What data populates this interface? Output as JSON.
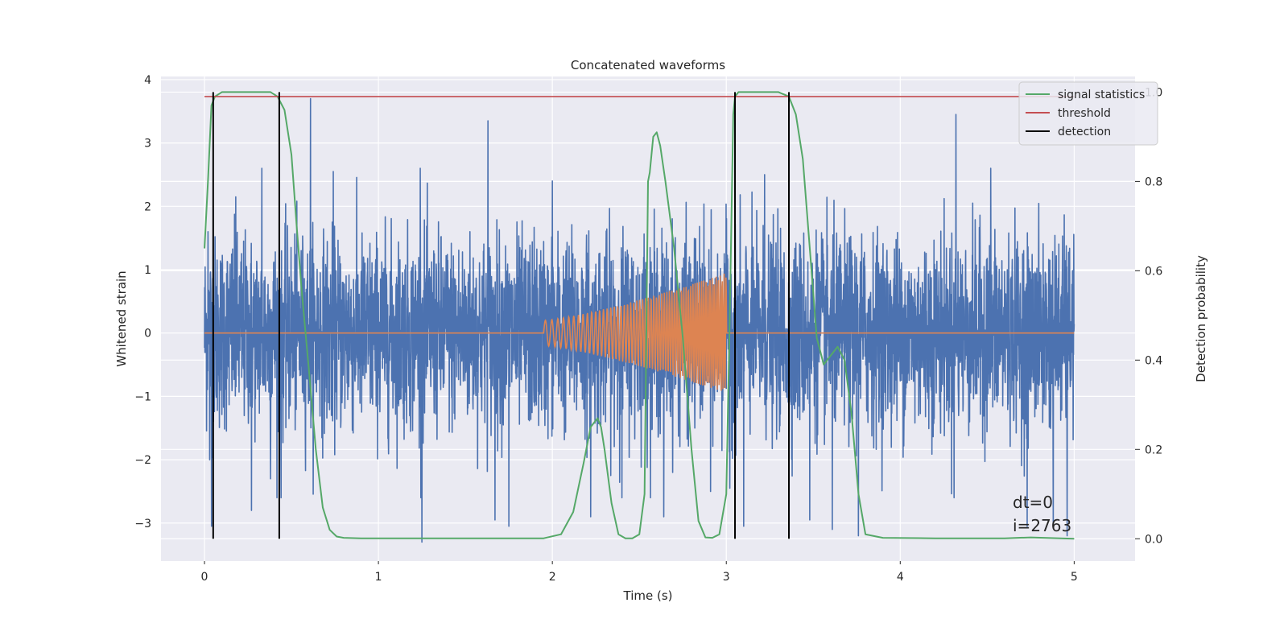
{
  "chart_data": {
    "type": "line",
    "title": "Concatenated waveforms",
    "xlabel": "Time (s)",
    "ylabel": "Whitened strain",
    "ylabel_right": "Detection probability",
    "xlim": [
      -0.25,
      5.35
    ],
    "ylim": [
      -3.6,
      4.05
    ],
    "ylim_right": [
      -0.05,
      1.035
    ],
    "xticks": [
      0,
      1,
      2,
      3,
      4,
      5
    ],
    "yticks": [
      -3,
      -2,
      -1,
      0,
      1,
      2,
      3,
      4
    ],
    "yticks_right": [
      0.0,
      0.2,
      0.4,
      0.6,
      0.8,
      1.0
    ],
    "xtick_labels": [
      "0",
      "1",
      "2",
      "3",
      "4",
      "5"
    ],
    "ytick_labels": [
      "−3",
      "−2",
      "−1",
      "0",
      "1",
      "2",
      "3",
      "4"
    ],
    "ytick_right_labels": [
      "0.0",
      "0.2",
      "0.4",
      "0.6",
      "0.8",
      "1.0"
    ],
    "grid": true,
    "legend_position": "top-right",
    "colors": {
      "strain": "#4c72b0",
      "template": "#dd8452",
      "statistics": "#55a868",
      "threshold": "#c44e52",
      "detection": "#000000",
      "background": "#eaeaf2"
    },
    "legend": [
      {
        "label": "signal statistics",
        "color": "#55a868"
      },
      {
        "label": "threshold",
        "color": "#c44e52"
      },
      {
        "label": "detection",
        "color": "#000000"
      }
    ],
    "strain_series": {
      "description_free": true,
      "t_range": [
        0,
        5
      ],
      "noise_std": 0.75,
      "peaks": [
        {
          "t": 0.02,
          "y": 1.6
        },
        {
          "t": 0.05,
          "y": 1.95
        },
        {
          "t": 0.03,
          "y": -2.0
        },
        {
          "t": 0.04,
          "y": -3.05
        },
        {
          "t": 0.18,
          "y": 2.15
        },
        {
          "t": 0.27,
          "y": -2.8
        },
        {
          "t": 0.33,
          "y": 2.6
        },
        {
          "t": 0.38,
          "y": -2.3
        },
        {
          "t": 0.43,
          "y": 3.15
        },
        {
          "t": 0.44,
          "y": -2.6
        },
        {
          "t": 0.61,
          "y": 3.7
        },
        {
          "t": 0.74,
          "y": 2.55
        },
        {
          "t": 1.25,
          "y": -3.3
        },
        {
          "t": 1.24,
          "y": 2.6
        },
        {
          "t": 1.63,
          "y": 3.35
        },
        {
          "t": 1.67,
          "y": -2.95
        },
        {
          "t": 1.75,
          "y": -3.05
        },
        {
          "t": 2.0,
          "y": 2.4
        },
        {
          "t": 2.22,
          "y": -2.9
        },
        {
          "t": 2.4,
          "y": -2.6
        },
        {
          "t": 2.64,
          "y": -2.9
        },
        {
          "t": 2.91,
          "y": -2.5
        },
        {
          "t": 3.02,
          "y": -2.45
        },
        {
          "t": 3.1,
          "y": -3.05
        },
        {
          "t": 3.22,
          "y": 2.5
        },
        {
          "t": 3.48,
          "y": -2.95
        },
        {
          "t": 3.61,
          "y": -3.1
        },
        {
          "t": 3.76,
          "y": -3.2
        },
        {
          "t": 4.31,
          "y": 2.5
        },
        {
          "t": 4.31,
          "y": -2.6
        },
        {
          "t": 4.32,
          "y": 3.45
        },
        {
          "t": 4.52,
          "y": 2.6
        },
        {
          "t": 4.73,
          "y": -3.05
        },
        {
          "t": 4.88,
          "y": -3.05
        },
        {
          "t": 4.96,
          "y": -3.2
        }
      ]
    },
    "template_series": {
      "t_start": 1.95,
      "t_end": 3.0,
      "amp_start": 0.2,
      "amp_end": 0.95,
      "freq_start": 25,
      "freq_end": 90
    },
    "statistics_series": {
      "x": [
        0.0,
        0.02,
        0.04,
        0.06,
        0.1,
        0.2,
        0.3,
        0.38,
        0.42,
        0.46,
        0.5,
        0.53,
        0.56,
        0.6,
        0.64,
        0.68,
        0.72,
        0.76,
        0.8,
        0.9,
        1.2,
        1.6,
        1.95,
        2.05,
        2.12,
        2.18,
        2.22,
        2.26,
        2.28,
        2.3,
        2.34,
        2.38,
        2.42,
        2.46,
        2.5,
        2.53,
        2.55,
        2.56,
        2.58,
        2.6,
        2.62,
        2.65,
        2.7,
        2.75,
        2.8,
        2.84,
        2.88,
        2.92,
        2.96,
        3.0,
        3.02,
        3.04,
        3.05,
        3.07,
        3.1,
        3.2,
        3.3,
        3.36,
        3.4,
        3.44,
        3.48,
        3.52,
        3.56,
        3.6,
        3.64,
        3.68,
        3.72,
        3.76,
        3.8,
        3.9,
        4.2,
        4.6,
        4.75,
        5.0
      ],
      "y": [
        0.65,
        0.8,
        0.97,
        0.99,
        1.0,
        1.0,
        1.0,
        1.0,
        0.99,
        0.96,
        0.86,
        0.7,
        0.55,
        0.38,
        0.2,
        0.07,
        0.02,
        0.005,
        0.002,
        0.001,
        0.001,
        0.001,
        0.001,
        0.01,
        0.06,
        0.17,
        0.25,
        0.27,
        0.25,
        0.2,
        0.08,
        0.01,
        0.001,
        0.001,
        0.01,
        0.1,
        0.8,
        0.82,
        0.9,
        0.91,
        0.88,
        0.8,
        0.65,
        0.45,
        0.2,
        0.04,
        0.003,
        0.002,
        0.01,
        0.1,
        0.5,
        0.95,
        0.99,
        1.0,
        1.0,
        1.0,
        1.0,
        0.99,
        0.95,
        0.85,
        0.65,
        0.45,
        0.39,
        0.41,
        0.43,
        0.4,
        0.28,
        0.1,
        0.01,
        0.002,
        0.001,
        0.001,
        0.003,
        0.0
      ]
    },
    "threshold": 0.99,
    "threshold_x": [
      0,
      5
    ],
    "detections": [
      0.05,
      0.43,
      3.05,
      3.36
    ],
    "annotation": {
      "dt": "dt=0",
      "i": "i=2763"
    }
  }
}
